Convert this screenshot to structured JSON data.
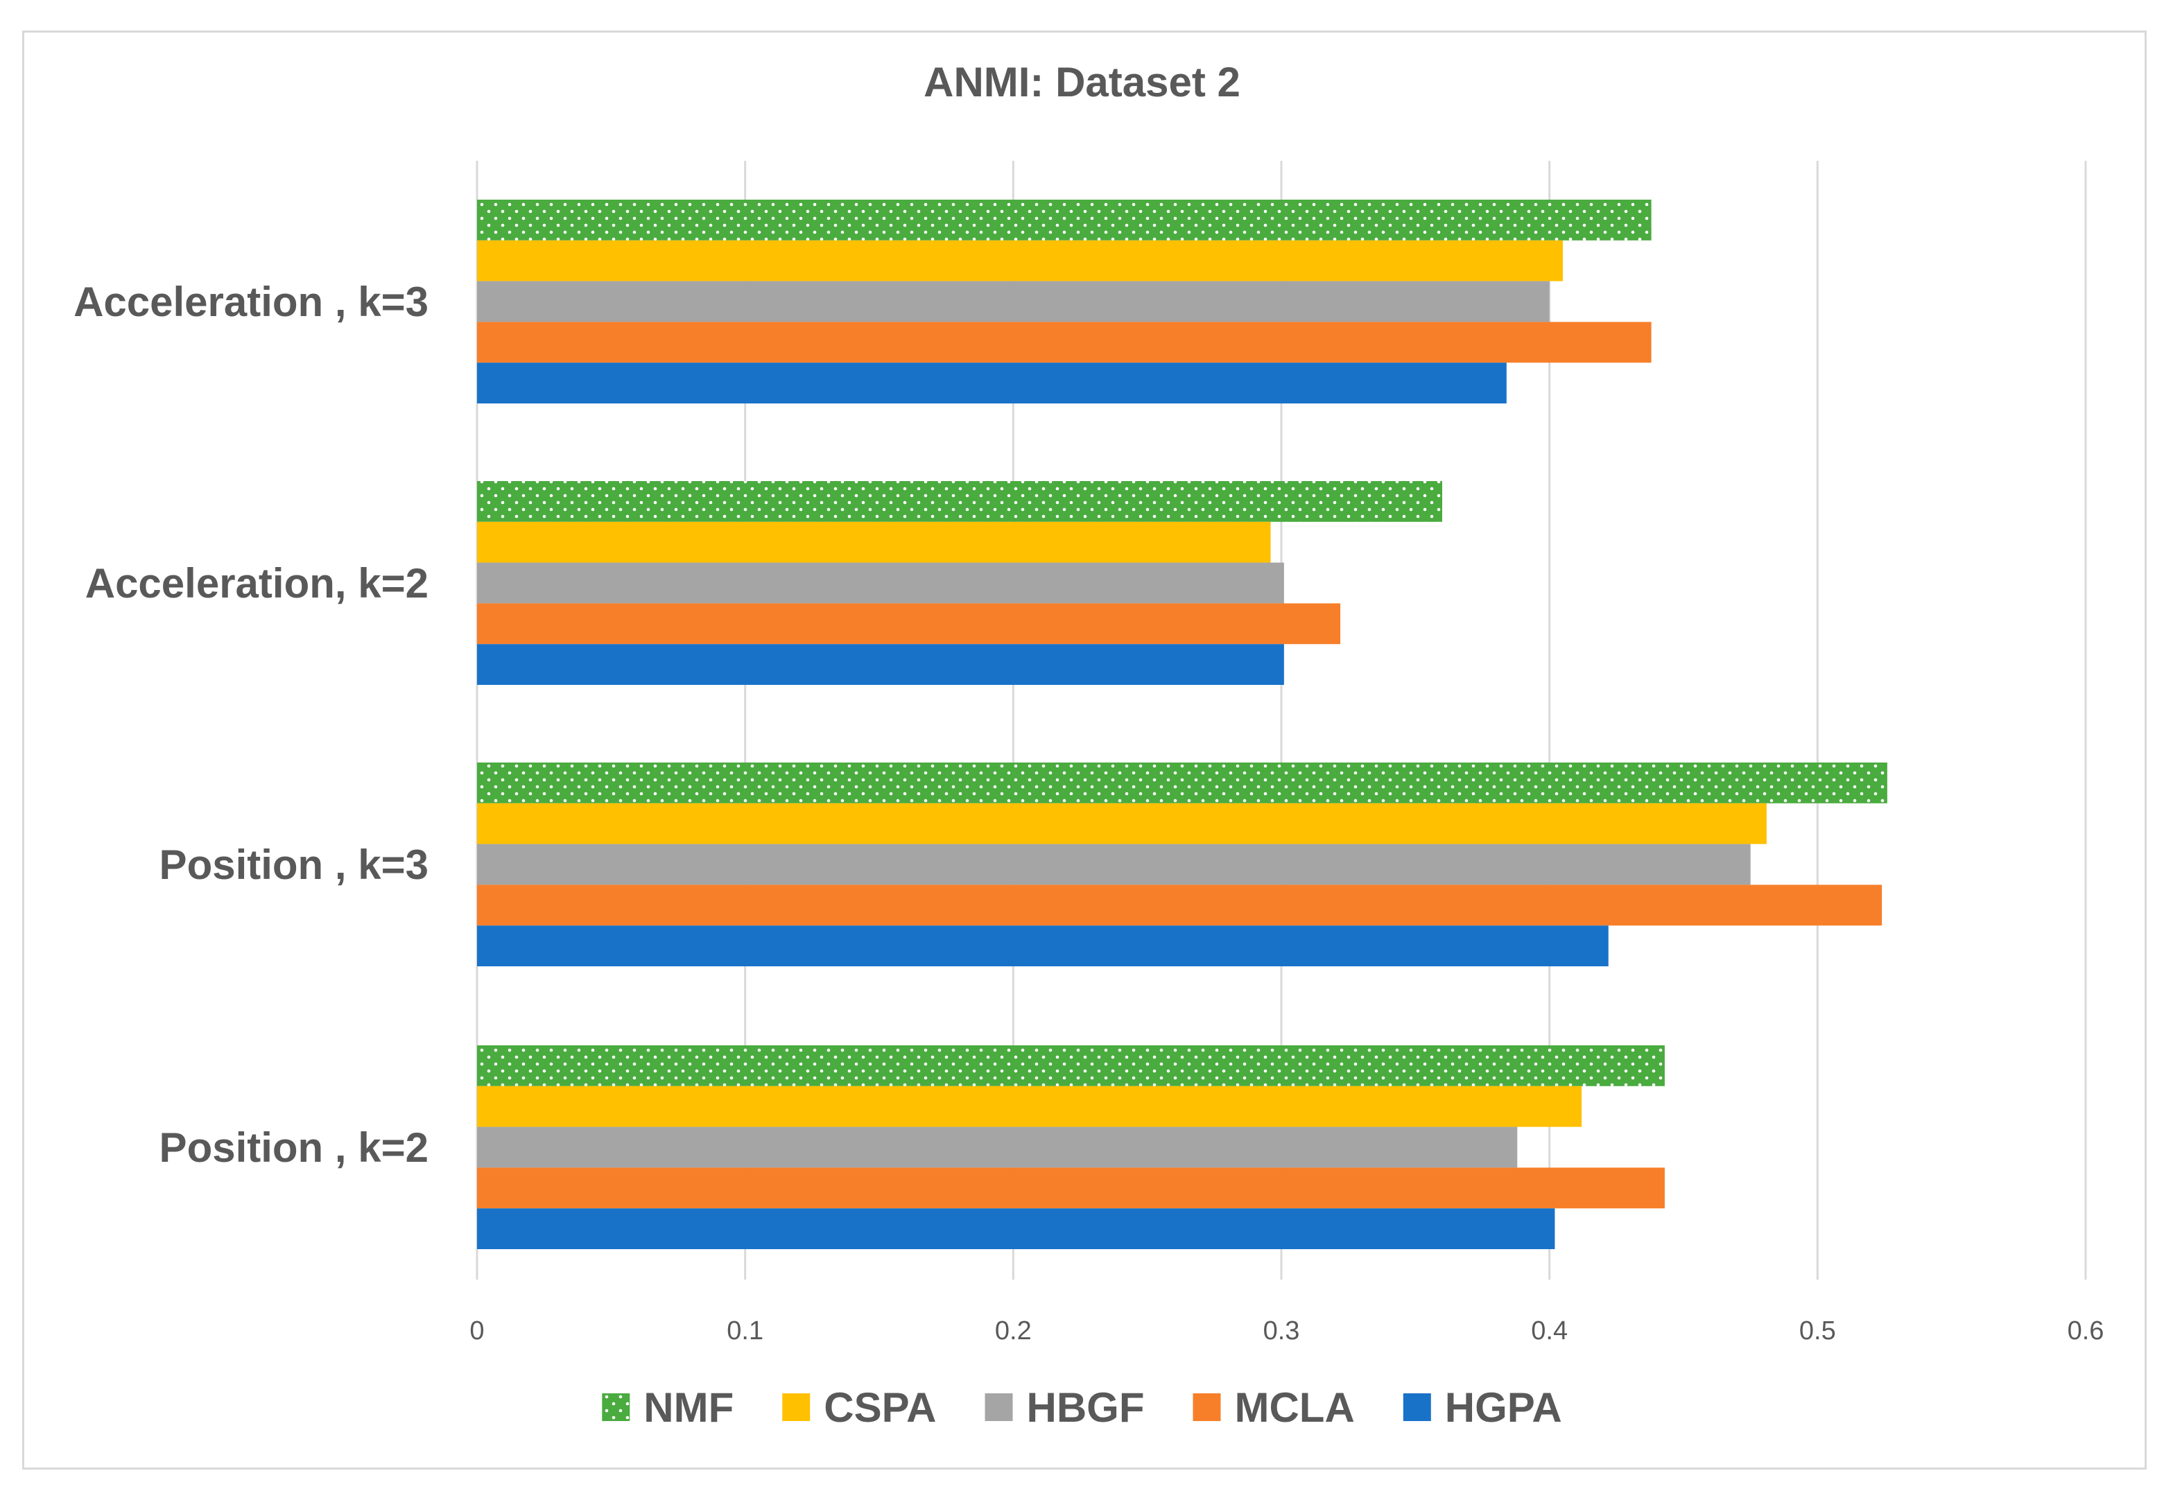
{
  "chart_data": {
    "type": "bar",
    "orientation": "horizontal",
    "title": "ANMI: Dataset 2",
    "xlabel": "",
    "ylabel": "",
    "xlim": [
      0,
      0.6
    ],
    "ticks": [
      "0",
      "0.1",
      "0.2",
      "0.3",
      "0.4",
      "0.5",
      "0.6"
    ],
    "tick_values": [
      0,
      0.1,
      0.2,
      0.3,
      0.4,
      0.5,
      0.6
    ],
    "grid": true,
    "legend_position": "bottom",
    "categories": [
      "Acceleration , k=3",
      "Acceleration, k=2",
      "Position , k=3",
      "Position , k=2"
    ],
    "series": [
      {
        "name": "NMF",
        "color": "#4aab3f",
        "pattern": "dotted",
        "values": [
          0.438,
          0.36,
          0.526,
          0.443
        ]
      },
      {
        "name": "CSPA",
        "color": "#ffc000",
        "values": [
          0.405,
          0.296,
          0.481,
          0.412
        ]
      },
      {
        "name": "HBGF",
        "color": "#a5a5a5",
        "values": [
          0.4,
          0.301,
          0.475,
          0.388
        ]
      },
      {
        "name": "MCLA",
        "color": "#f77f2a",
        "values": [
          0.438,
          0.322,
          0.524,
          0.443
        ]
      },
      {
        "name": "HGPA",
        "color": "#1872c8",
        "values": [
          0.384,
          0.301,
          0.422,
          0.402
        ]
      }
    ]
  }
}
